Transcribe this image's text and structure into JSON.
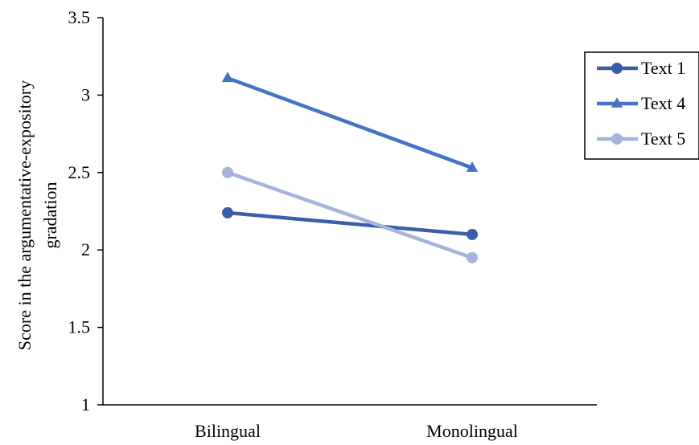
{
  "chart_data": {
    "type": "line",
    "categories": [
      "Bilingual",
      "Monolingual"
    ],
    "series": [
      {
        "name": "Text 1",
        "values": [
          2.24,
          2.1
        ],
        "color": "#3a5fa8",
        "marker": "circle"
      },
      {
        "name": "Text 4",
        "values": [
          3.11,
          2.53
        ],
        "color": "#4472c4",
        "marker": "triangle"
      },
      {
        "name": "Text 5",
        "values": [
          2.5,
          1.95
        ],
        "color": "#a5b4dd",
        "marker": "circle"
      }
    ],
    "ylabel_lines": [
      "Score in the argumentative-expository",
      "gradation"
    ],
    "ylim": [
      1,
      3.5
    ],
    "yticks": [
      "1",
      "1.5",
      "2",
      "2.5",
      "3",
      "3.5"
    ],
    "grid": false,
    "legend_position": "right"
  }
}
